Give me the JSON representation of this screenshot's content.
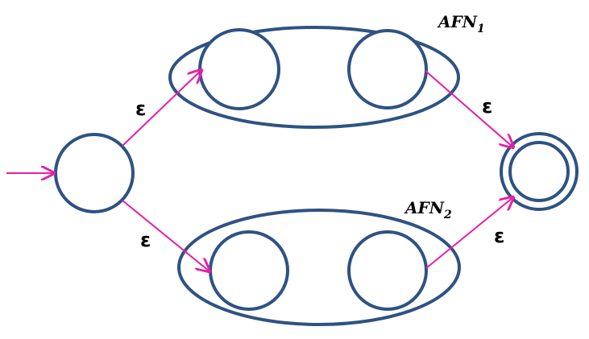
{
  "automaton": {
    "epsilon_symbol": "ε",
    "top_group": {
      "label": "AFN",
      "subscript": "1"
    },
    "bottom_group": {
      "label": "AFN",
      "subscript": "2"
    }
  },
  "colors": {
    "state_stroke": "#2e5283",
    "transition": "#e61ea8"
  }
}
